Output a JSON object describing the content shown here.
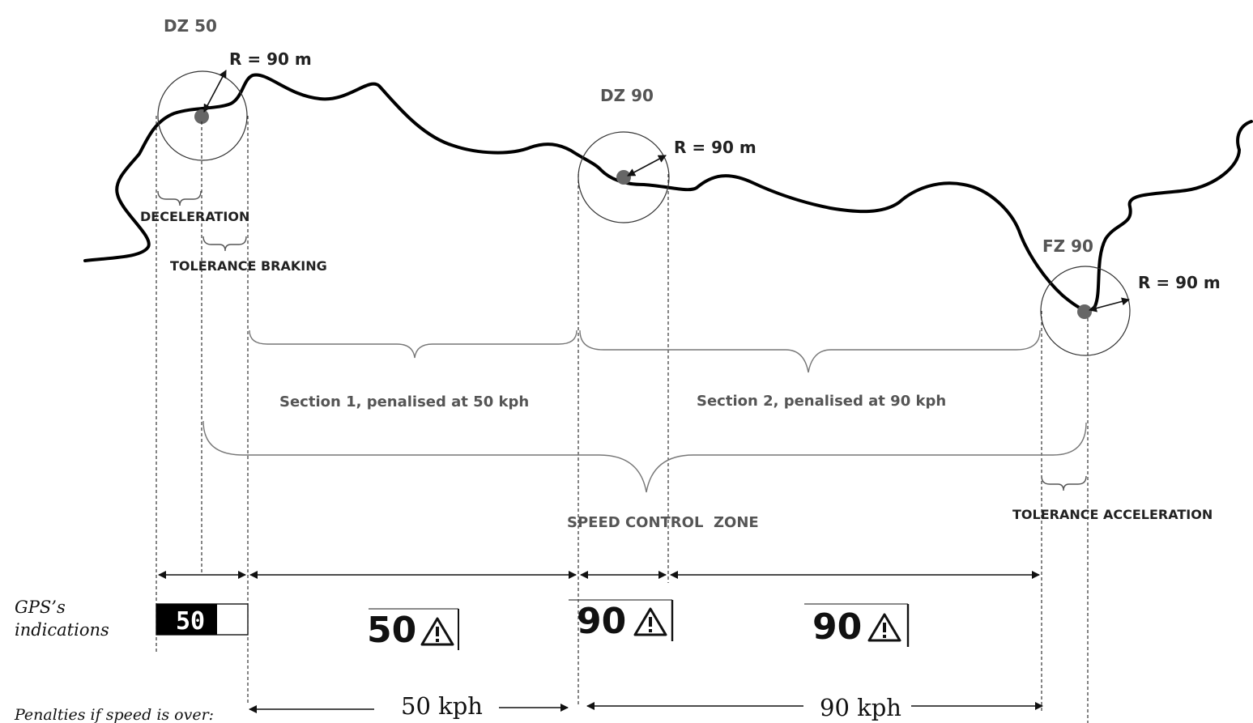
{
  "colors": {
    "road": "#000000",
    "circle": "#333333",
    "center_dot": "#666666",
    "brace": "#777777",
    "dashed": "#222222",
    "gps_dark": "#000000",
    "gps_text_light": "#ffffff"
  },
  "zones": {
    "dz50": {
      "name": "DZ 50",
      "radius": "R = 90 m"
    },
    "dz90": {
      "name": "DZ 90",
      "radius": "R = 90 m"
    },
    "fz90": {
      "name": "FZ 90",
      "radius": "R = 90 m"
    }
  },
  "labels": {
    "deceleration": "DECELERATION",
    "tolerance_braking": "TOLERANCE BRAKING",
    "section1": "Section 1, penalised at 50 kph",
    "section2": "Section 2, penalised at 90 kph",
    "speed_control_zone": "SPEED CONTROL  ZONE",
    "tolerance_acceleration": "TOLERANCE ACCELERATION"
  },
  "gps": {
    "title_line1": "GPS’s",
    "title_line2": "indications",
    "indications": [
      "50",
      "50",
      "90",
      "90"
    ],
    "warning_icon": "warning-triangle-icon"
  },
  "penalties": {
    "label": "Penalties if speed is over:",
    "values": [
      "50 kph",
      "90 kph"
    ]
  }
}
